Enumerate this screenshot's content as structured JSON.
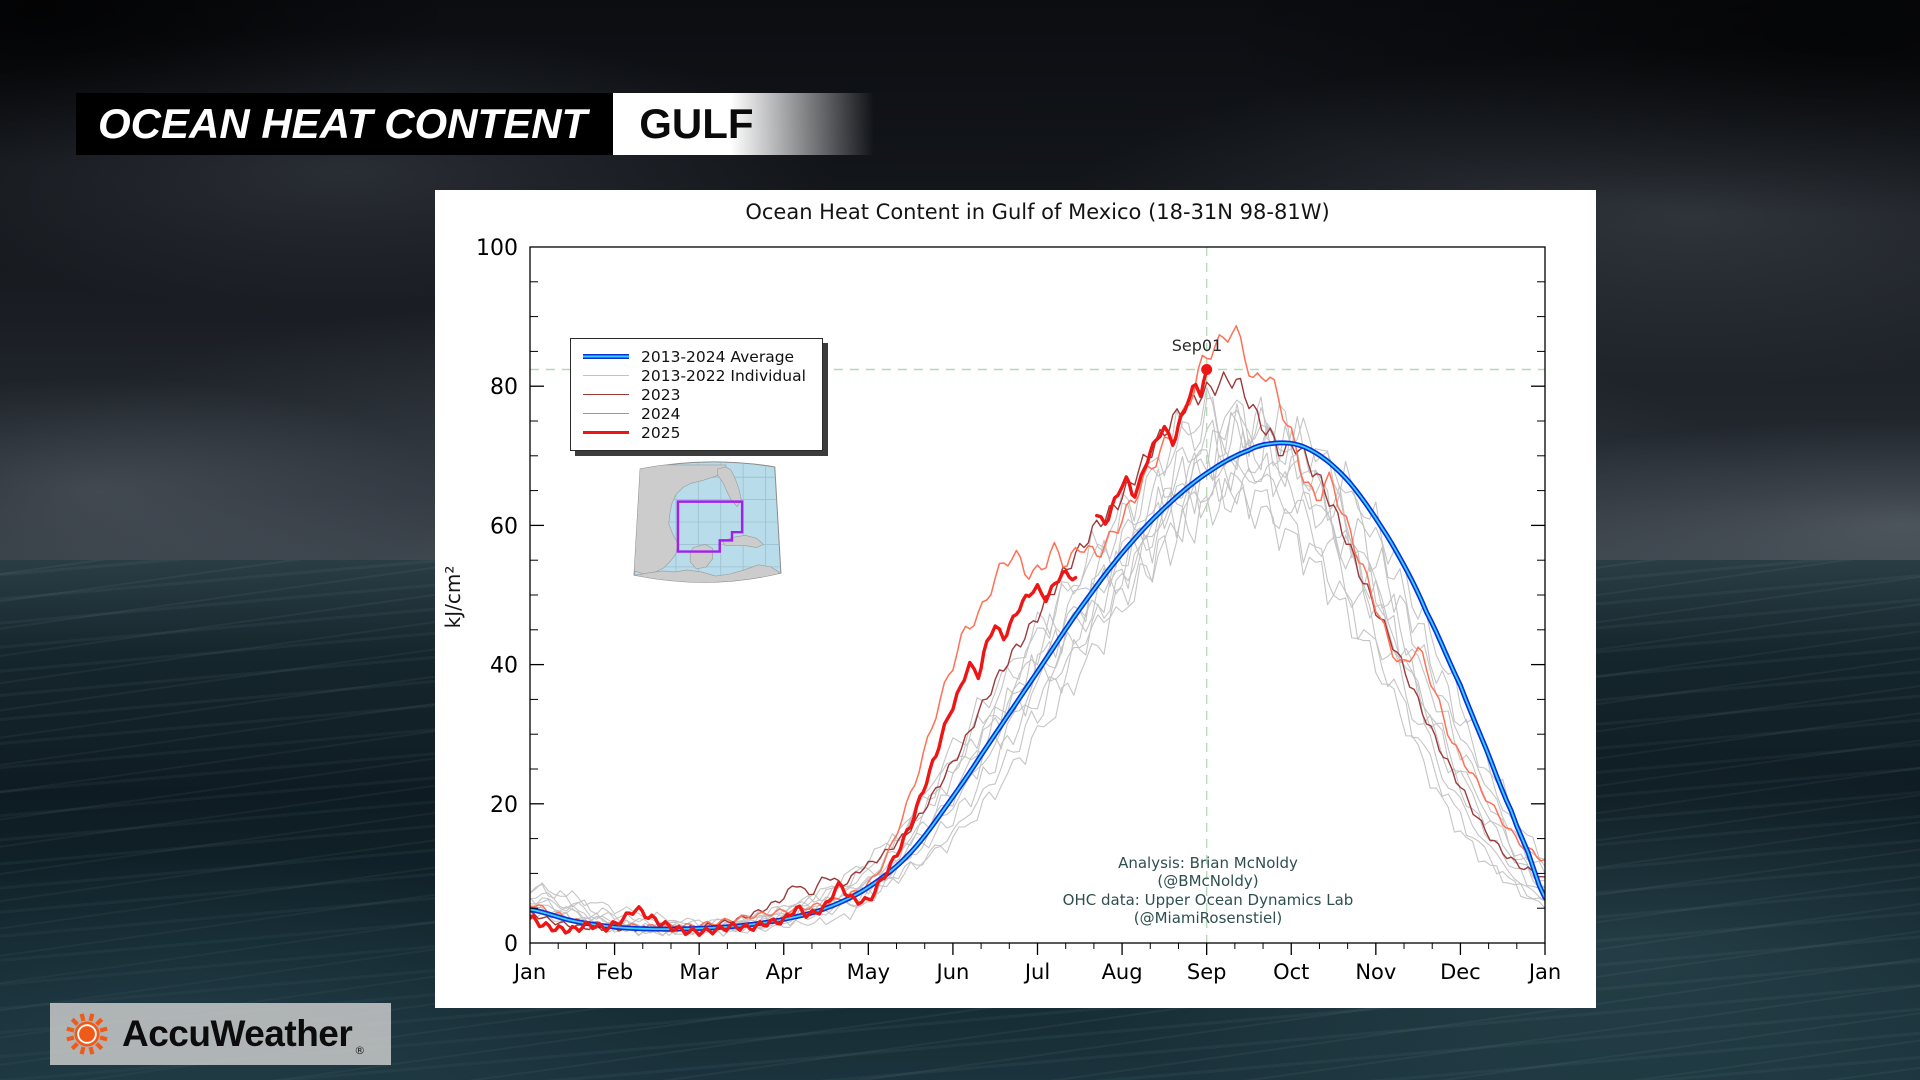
{
  "header": {
    "title": "OCEAN HEAT CONTENT",
    "region": "GULF"
  },
  "branding": {
    "name": "AccuWeather",
    "mark": "®"
  },
  "chart_data": {
    "type": "line",
    "title": "Ocean Heat Content in Gulf of Mexico (18-31N 98-81W)",
    "ylabel": "kJ/cm²",
    "xlabel": "",
    "ylim": [
      0,
      100
    ],
    "xlim_months": [
      0,
      12
    ],
    "yticks": [
      0,
      20,
      40,
      60,
      80,
      100
    ],
    "y_minor_step": 5,
    "xtick_labels": [
      "Jan",
      "Feb",
      "Mar",
      "Apr",
      "May",
      "Jun",
      "Jul",
      "Aug",
      "Sep",
      "Oct",
      "Nov",
      "Dec",
      "Jan"
    ],
    "grid": false,
    "legend_position": "upper-left",
    "legend": [
      {
        "label": "2013-2024 Average",
        "color": "#0a2fd8",
        "core": "#39cfff",
        "thickness": 4.5
      },
      {
        "label": "2013-2022 Individual",
        "color": "#c2c2c2",
        "thickness": 1.2
      },
      {
        "label": "2023",
        "color": "#9c3a3a",
        "thickness": 1.5
      },
      {
        "label": "2024",
        "color": "#ff7055",
        "thickness": 1.5
      },
      {
        "label": "2025",
        "color": "#ee1515",
        "thickness": 3.5
      }
    ],
    "marker": {
      "label": "Sep01",
      "month": 8,
      "value": 82.4
    },
    "crosshair": {
      "month": 8,
      "value": 82.4,
      "color": "#b4dcb4",
      "style": "dashed"
    },
    "annotation": {
      "lines": [
        "Analysis: Brian McNoldy",
        "(@BMcNoldy)",
        "OHC data: Upper Ocean Dynamics Lab",
        "(@MiamiRosenstiel)"
      ],
      "color": "#2f4f4f"
    },
    "series": {
      "average": {
        "name": "2013-2024 Average",
        "points": [
          [
            0,
            4.8
          ],
          [
            0.5,
            3.2
          ],
          [
            1,
            2.3
          ],
          [
            1.5,
            2.0
          ],
          [
            2,
            2.1
          ],
          [
            2.5,
            2.5
          ],
          [
            3,
            3.4
          ],
          [
            3.5,
            5.0
          ],
          [
            4,
            8
          ],
          [
            4.5,
            13
          ],
          [
            5,
            21
          ],
          [
            5.5,
            30
          ],
          [
            6,
            39
          ],
          [
            6.5,
            48
          ],
          [
            7,
            56
          ],
          [
            7.5,
            62.5
          ],
          [
            8,
            67.5
          ],
          [
            8.5,
            70.8
          ],
          [
            8.8,
            71.8
          ],
          [
            9.1,
            71.5
          ],
          [
            9.4,
            69.5
          ],
          [
            9.7,
            66
          ],
          [
            10,
            61
          ],
          [
            10.3,
            55
          ],
          [
            10.6,
            47.5
          ],
          [
            11,
            37
          ],
          [
            11.3,
            28
          ],
          [
            11.6,
            19
          ],
          [
            11.8,
            13
          ],
          [
            12,
            6.5
          ]
        ]
      },
      "individual": {
        "name": "2013-2022 Individual",
        "months": [
          0,
          1,
          2,
          3,
          4,
          5,
          6,
          7,
          8,
          9,
          10,
          11,
          12
        ],
        "years": [
          [
            8,
            4,
            3,
            4,
            9,
            18,
            35,
            50,
            62,
            68,
            55,
            30,
            10
          ],
          [
            5,
            2,
            1.5,
            2.5,
            6,
            25,
            40,
            55,
            70,
            65,
            50,
            22,
            7
          ],
          [
            6,
            3,
            2,
            3,
            8,
            15,
            30,
            48,
            65,
            72,
            60,
            35,
            12
          ],
          [
            4,
            2,
            2,
            5,
            10,
            22,
            42,
            58,
            72,
            70,
            52,
            28,
            8
          ],
          [
            7,
            3.5,
            2.5,
            4,
            7,
            20,
            38,
            54,
            68,
            63,
            45,
            20,
            6
          ],
          [
            5.5,
            2.8,
            2,
            3.5,
            9,
            28,
            45,
            60,
            75,
            68,
            48,
            25,
            9
          ],
          [
            6.5,
            3,
            2.2,
            4.5,
            12,
            24,
            40,
            56,
            66,
            60,
            42,
            18,
            5
          ],
          [
            4.5,
            2.2,
            1.8,
            3,
            7,
            16,
            33,
            52,
            70,
            74,
            58,
            32,
            11
          ],
          [
            8,
            5,
            3,
            5,
            11,
            26,
            44,
            62,
            76,
            70,
            50,
            24,
            8
          ],
          [
            5,
            2.5,
            2,
            3.8,
            8.5,
            21,
            37,
            53,
            64,
            58,
            40,
            16,
            6
          ]
        ]
      },
      "y2023": {
        "name": "2023",
        "points": [
          [
            0,
            4.2
          ],
          [
            0.3,
            3
          ],
          [
            0.6,
            2.3
          ],
          [
            1,
            2.1
          ],
          [
            1.5,
            2.1
          ],
          [
            2,
            2.3
          ],
          [
            2.4,
            3.2
          ],
          [
            2.7,
            4.5
          ],
          [
            3,
            6.5
          ],
          [
            3.15,
            8.5
          ],
          [
            3.3,
            7
          ],
          [
            3.5,
            9.5
          ],
          [
            3.7,
            8.5
          ],
          [
            3.9,
            10.5
          ],
          [
            4.1,
            12
          ],
          [
            4.3,
            14
          ],
          [
            4.5,
            16.5
          ],
          [
            4.7,
            20
          ],
          [
            4.9,
            24
          ],
          [
            5.1,
            28
          ],
          [
            5.3,
            33
          ],
          [
            5.5,
            37.5
          ],
          [
            5.7,
            41.5
          ],
          [
            5.9,
            45
          ],
          [
            6.1,
            49
          ],
          [
            6.3,
            53
          ],
          [
            6.5,
            56.5
          ],
          [
            6.7,
            60
          ],
          [
            6.9,
            62.5
          ],
          [
            7.1,
            66
          ],
          [
            7.3,
            70
          ],
          [
            7.5,
            73.5
          ],
          [
            7.7,
            76.5
          ],
          [
            7.9,
            78.5
          ],
          [
            8.1,
            80
          ],
          [
            8.3,
            81
          ],
          [
            8.45,
            79
          ],
          [
            8.6,
            75.5
          ],
          [
            8.75,
            73
          ],
          [
            8.9,
            70.5
          ],
          [
            9.05,
            71.5
          ],
          [
            9.2,
            69
          ],
          [
            9.4,
            65
          ],
          [
            9.6,
            59.5
          ],
          [
            9.8,
            53.5
          ],
          [
            10,
            48
          ],
          [
            10.2,
            43
          ],
          [
            10.4,
            37.5
          ],
          [
            10.6,
            32
          ],
          [
            10.8,
            27
          ],
          [
            11,
            22.5
          ],
          [
            11.2,
            18
          ],
          [
            11.4,
            14.5
          ],
          [
            11.6,
            12
          ],
          [
            11.8,
            10.5
          ],
          [
            12,
            9.5
          ]
        ]
      },
      "y2024": {
        "name": "2024",
        "points": [
          [
            0,
            5.6
          ],
          [
            0.3,
            4.2
          ],
          [
            0.6,
            3.0
          ],
          [
            1,
            2.6
          ],
          [
            1.5,
            2.3
          ],
          [
            2,
            2.6
          ],
          [
            2.5,
            3.6
          ],
          [
            3,
            4.6
          ],
          [
            3.5,
            5.6
          ],
          [
            3.8,
            7
          ],
          [
            4,
            8.5
          ],
          [
            4.2,
            12
          ],
          [
            4.4,
            18
          ],
          [
            4.6,
            25
          ],
          [
            4.8,
            33
          ],
          [
            5,
            40
          ],
          [
            5.15,
            45
          ],
          [
            5.3,
            47
          ],
          [
            5.45,
            51
          ],
          [
            5.6,
            54.5
          ],
          [
            5.75,
            55.5
          ],
          [
            5.9,
            53
          ],
          [
            6.05,
            54
          ],
          [
            6.2,
            56.5
          ],
          [
            6.35,
            54.5
          ],
          [
            6.5,
            57
          ],
          [
            6.7,
            56
          ],
          [
            6.9,
            59
          ],
          [
            7.1,
            63
          ],
          [
            7.3,
            67.5
          ],
          [
            7.5,
            71.5
          ],
          [
            7.7,
            75
          ],
          [
            7.85,
            80
          ],
          [
            8,
            84.5
          ],
          [
            8.15,
            86
          ],
          [
            8.3,
            88
          ],
          [
            8.45,
            85
          ],
          [
            8.55,
            80.5
          ],
          [
            8.7,
            82
          ],
          [
            8.85,
            78
          ],
          [
            9,
            73
          ],
          [
            9.15,
            67
          ],
          [
            9.3,
            64
          ],
          [
            9.45,
            66.5
          ],
          [
            9.6,
            62
          ],
          [
            9.75,
            57
          ],
          [
            9.9,
            52
          ],
          [
            10.1,
            45
          ],
          [
            10.3,
            40
          ],
          [
            10.5,
            42
          ],
          [
            10.7,
            36
          ],
          [
            10.9,
            29
          ],
          [
            11.1,
            25
          ],
          [
            11.3,
            21
          ],
          [
            11.5,
            17.5
          ],
          [
            11.7,
            14.5
          ],
          [
            11.85,
            13
          ],
          [
            12,
            12
          ]
        ]
      },
      "y2025": {
        "name": "2025",
        "segments": [
          [
            [
              0,
              3.6
            ],
            [
              0.15,
              2.6
            ],
            [
              0.3,
              2.1
            ],
            [
              0.5,
              1.9
            ],
            [
              0.7,
              2.6
            ],
            [
              0.9,
              2.2
            ],
            [
              1.1,
              3.4
            ],
            [
              1.25,
              4.8
            ],
            [
              1.4,
              3.8
            ],
            [
              1.6,
              2.6
            ],
            [
              1.8,
              1.8
            ],
            [
              2,
              1.6
            ],
            [
              2.2,
              1.9
            ],
            [
              2.4,
              2.4
            ],
            [
              2.6,
              2.2
            ],
            [
              2.8,
              2.9
            ],
            [
              3,
              3.3
            ],
            [
              3.15,
              4.9
            ],
            [
              3.3,
              4.1
            ],
            [
              3.5,
              5.4
            ],
            [
              3.65,
              8.2
            ],
            [
              3.8,
              6.4
            ],
            [
              4,
              6.2
            ],
            [
              4.15,
              9
            ],
            [
              4.3,
              12
            ],
            [
              4.5,
              17
            ],
            [
              4.65,
              22
            ],
            [
              4.8,
              27
            ],
            [
              4.9,
              31
            ],
            [
              5,
              34
            ],
            [
              5.1,
              37
            ],
            [
              5.2,
              40
            ],
            [
              5.3,
              38.5
            ],
            [
              5.4,
              43
            ],
            [
              5.5,
              45.5
            ],
            [
              5.6,
              44
            ],
            [
              5.75,
              47.5
            ],
            [
              5.9,
              50
            ],
            [
              6,
              51
            ],
            [
              6.1,
              49.5
            ],
            [
              6.2,
              51.5
            ],
            [
              6.3,
              53
            ],
            [
              6.45,
              52.5
            ]
          ],
          [
            [
              6.7,
              61.5
            ],
            [
              6.8,
              60.5
            ],
            [
              6.95,
              64.5
            ],
            [
              7.05,
              66.5
            ],
            [
              7.15,
              64.5
            ],
            [
              7.3,
              69.5
            ],
            [
              7.4,
              72
            ],
            [
              7.5,
              74
            ],
            [
              7.6,
              72
            ],
            [
              7.7,
              75.5
            ],
            [
              7.8,
              78.5
            ],
            [
              7.87,
              80
            ],
            [
              7.93,
              79
            ],
            [
              8,
              82.4
            ]
          ]
        ],
        "end_dot": [
          8,
          82.4
        ]
      }
    },
    "inset_map": {
      "region_outline_color": "#a020f0",
      "water_color": "#b9dcea",
      "land_color": "#cccccc"
    }
  }
}
